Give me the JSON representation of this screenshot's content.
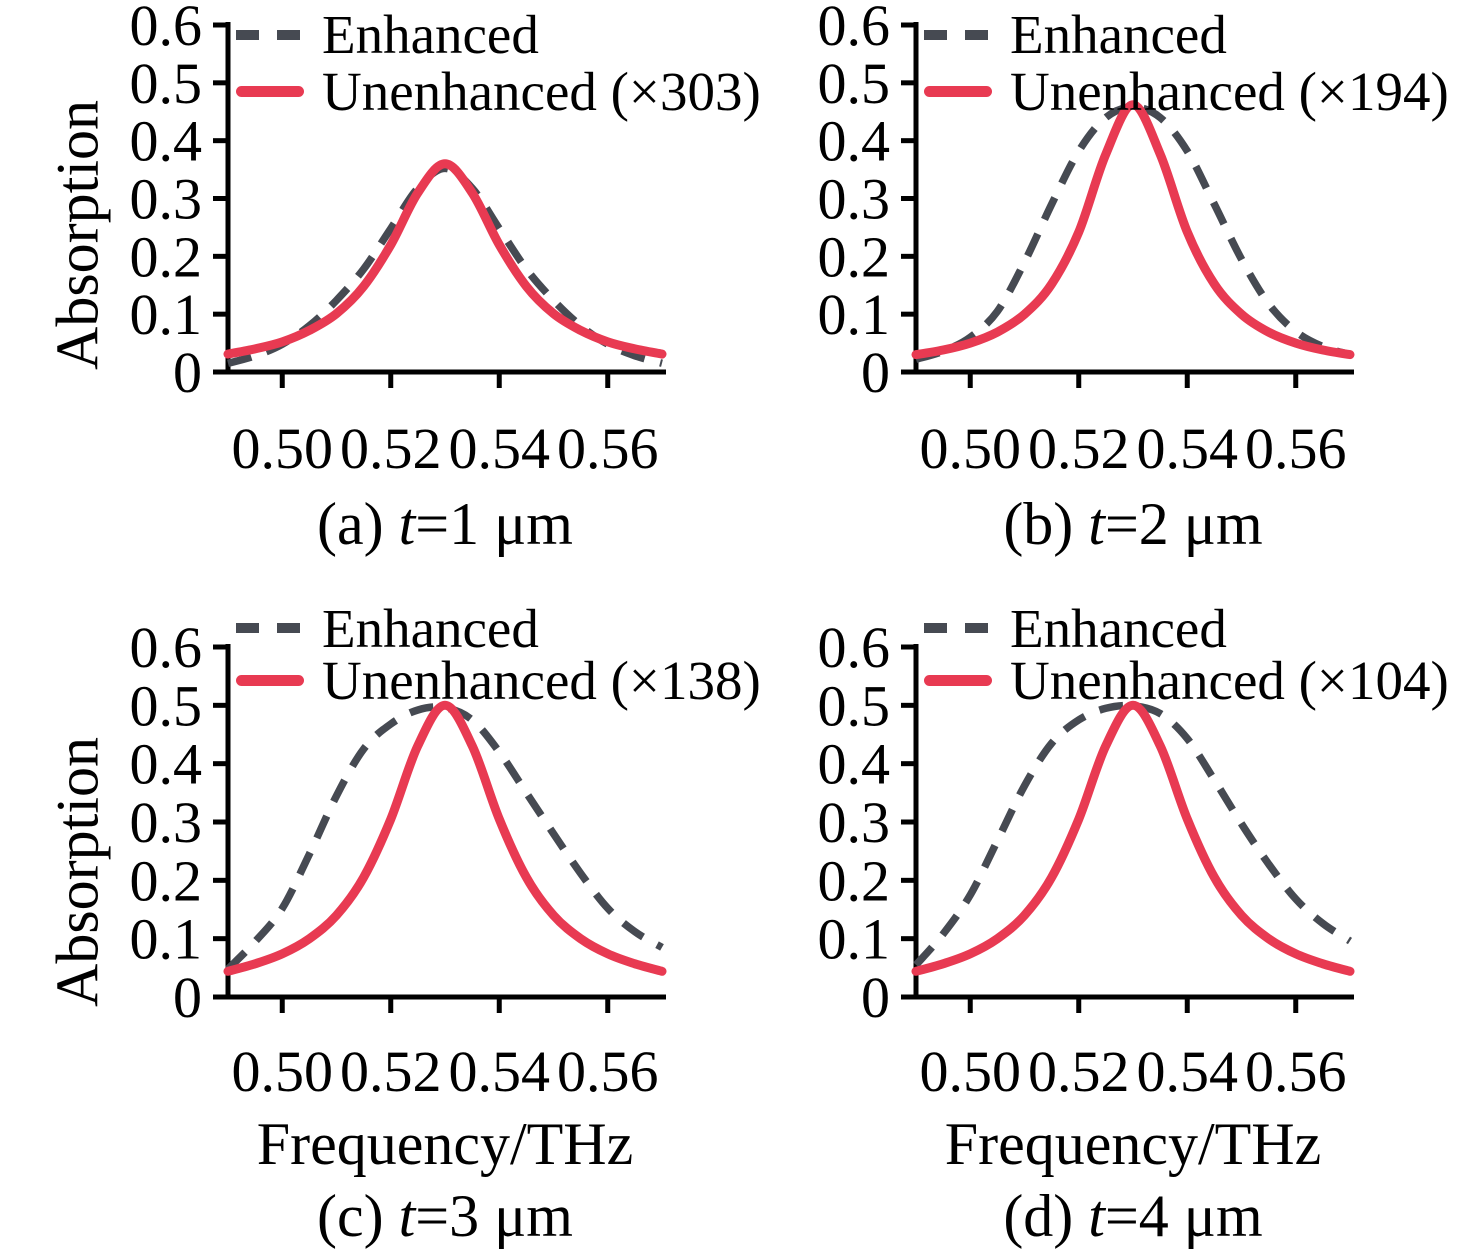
{
  "colors": {
    "axis": "#000000",
    "enhanced": "#464a52",
    "unenhanced": "#e83a52"
  },
  "chart_data": [
    {
      "type": "line",
      "panel": "a",
      "title": "(a) t=1 μm",
      "caption": {
        "prefix": "(a) ",
        "italic": "t",
        "suffix": "=1 μm"
      },
      "ylabel": "Absorption",
      "xlim": [
        0.49,
        0.57
      ],
      "ylim": [
        0,
        0.6
      ],
      "grid": false,
      "legend_position": "upper left",
      "xticks": {
        "values": [
          0.5,
          0.52,
          0.54,
          0.56
        ],
        "labels": [
          "0.50",
          "0.52",
          "0.54",
          "0.56"
        ]
      },
      "yticks": {
        "values": [
          0,
          0.1,
          0.2,
          0.3,
          0.4,
          0.5,
          0.6
        ],
        "labels": [
          "0",
          "0.1",
          "0.2",
          "0.3",
          "0.4",
          "0.5",
          "0.6"
        ]
      },
      "x": [
        0.49,
        0.495,
        0.5,
        0.505,
        0.51,
        0.515,
        0.52,
        0.525,
        0.53,
        0.535,
        0.54,
        0.545,
        0.55,
        0.555,
        0.56,
        0.565,
        0.57
      ],
      "series": [
        {
          "name": "Enhanced",
          "style": "dashed",
          "color": "#464a52",
          "values": [
            0.015,
            0.028,
            0.048,
            0.08,
            0.124,
            0.178,
            0.248,
            0.318,
            0.352,
            0.318,
            0.248,
            0.178,
            0.124,
            0.08,
            0.048,
            0.028,
            0.015
          ]
        },
        {
          "name": "Unenhanced (×303)",
          "style": "solid",
          "color": "#e83a52",
          "values": [
            0.031,
            0.04,
            0.052,
            0.072,
            0.101,
            0.148,
            0.22,
            0.31,
            0.36,
            0.31,
            0.22,
            0.148,
            0.101,
            0.072,
            0.052,
            0.04,
            0.031
          ]
        }
      ]
    },
    {
      "type": "line",
      "panel": "b",
      "title": "(b) t=2 μm",
      "caption": {
        "prefix": "(b) ",
        "italic": "t",
        "suffix": "=2 μm"
      },
      "xlim": [
        0.49,
        0.57
      ],
      "ylim": [
        0,
        0.6
      ],
      "grid": false,
      "legend_position": "upper left",
      "xticks": {
        "values": [
          0.5,
          0.52,
          0.54,
          0.56
        ],
        "labels": [
          "0.50",
          "0.52",
          "0.54",
          "0.56"
        ]
      },
      "yticks": {
        "values": [
          0,
          0.1,
          0.2,
          0.3,
          0.4,
          0.5,
          0.6
        ],
        "labels": [
          "0",
          "0.1",
          "0.2",
          "0.3",
          "0.4",
          "0.5",
          "0.6"
        ]
      },
      "x": [
        0.49,
        0.495,
        0.5,
        0.505,
        0.51,
        0.515,
        0.52,
        0.525,
        0.53,
        0.535,
        0.54,
        0.545,
        0.55,
        0.555,
        0.56,
        0.565,
        0.57
      ],
      "series": [
        {
          "name": "Enhanced",
          "style": "dashed",
          "color": "#464a52",
          "values": [
            0.022,
            0.036,
            0.06,
            0.105,
            0.19,
            0.29,
            0.382,
            0.44,
            0.458,
            0.44,
            0.382,
            0.29,
            0.195,
            0.118,
            0.07,
            0.044,
            0.03
          ]
        },
        {
          "name": "Unenhanced (×194)",
          "style": "solid",
          "color": "#e83a52",
          "values": [
            0.03,
            0.038,
            0.05,
            0.069,
            0.1,
            0.152,
            0.242,
            0.377,
            0.462,
            0.377,
            0.242,
            0.152,
            0.1,
            0.069,
            0.05,
            0.038,
            0.03
          ]
        }
      ]
    },
    {
      "type": "line",
      "panel": "c",
      "title": "(c) t=3 μm",
      "caption": {
        "prefix": "(c) ",
        "italic": "t",
        "suffix": "=3 μm"
      },
      "xlabel": "Frequency/THz",
      "ylabel": "Absorption",
      "xlim": [
        0.49,
        0.57
      ],
      "ylim": [
        0,
        0.6
      ],
      "grid": false,
      "legend_position": "upper left",
      "xticks": {
        "values": [
          0.5,
          0.52,
          0.54,
          0.56
        ],
        "labels": [
          "0.50",
          "0.52",
          "0.54",
          "0.56"
        ]
      },
      "yticks": {
        "values": [
          0,
          0.1,
          0.2,
          0.3,
          0.4,
          0.5,
          0.6
        ],
        "labels": [
          "0",
          "0.1",
          "0.2",
          "0.3",
          "0.4",
          "0.5",
          "0.6"
        ]
      },
      "x": [
        0.49,
        0.495,
        0.5,
        0.505,
        0.51,
        0.515,
        0.52,
        0.525,
        0.53,
        0.535,
        0.54,
        0.545,
        0.55,
        0.555,
        0.56,
        0.565,
        0.57
      ],
      "series": [
        {
          "name": "Enhanced",
          "style": "dashed",
          "color": "#464a52",
          "values": [
            0.048,
            0.095,
            0.152,
            0.245,
            0.345,
            0.425,
            0.468,
            0.492,
            0.496,
            0.475,
            0.42,
            0.35,
            0.28,
            0.212,
            0.152,
            0.112,
            0.085
          ]
        },
        {
          "name": "Unenhanced (×138)",
          "style": "solid",
          "color": "#e83a52",
          "values": [
            0.044,
            0.057,
            0.074,
            0.1,
            0.14,
            0.205,
            0.305,
            0.431,
            0.5,
            0.431,
            0.305,
            0.205,
            0.14,
            0.1,
            0.074,
            0.057,
            0.044
          ]
        }
      ]
    },
    {
      "type": "line",
      "panel": "d",
      "title": "(d) t=4 μm",
      "caption": {
        "prefix": "(d) ",
        "italic": "t",
        "suffix": "=4 μm"
      },
      "xlabel": "Frequency/THz",
      "xlim": [
        0.49,
        0.57
      ],
      "ylim": [
        0,
        0.6
      ],
      "grid": false,
      "legend_position": "upper left",
      "xticks": {
        "values": [
          0.5,
          0.52,
          0.54,
          0.56
        ],
        "labels": [
          "0.50",
          "0.52",
          "0.54",
          "0.56"
        ]
      },
      "yticks": {
        "values": [
          0,
          0.1,
          0.2,
          0.3,
          0.4,
          0.5,
          0.6
        ],
        "labels": [
          "0",
          "0.1",
          "0.2",
          "0.3",
          "0.4",
          "0.5",
          "0.6"
        ]
      },
      "x": [
        0.49,
        0.495,
        0.5,
        0.505,
        0.51,
        0.515,
        0.52,
        0.525,
        0.53,
        0.535,
        0.54,
        0.545,
        0.55,
        0.555,
        0.56,
        0.565,
        0.57
      ],
      "series": [
        {
          "name": "Enhanced",
          "style": "dashed",
          "color": "#464a52",
          "values": [
            0.055,
            0.108,
            0.175,
            0.268,
            0.362,
            0.435,
            0.475,
            0.495,
            0.499,
            0.486,
            0.443,
            0.372,
            0.297,
            0.228,
            0.168,
            0.126,
            0.096
          ]
        },
        {
          "name": "Unenhanced (×104)",
          "style": "solid",
          "color": "#e83a52",
          "values": [
            0.044,
            0.057,
            0.074,
            0.1,
            0.14,
            0.205,
            0.305,
            0.431,
            0.5,
            0.431,
            0.305,
            0.205,
            0.14,
            0.1,
            0.074,
            0.057,
            0.044
          ]
        }
      ]
    }
  ]
}
